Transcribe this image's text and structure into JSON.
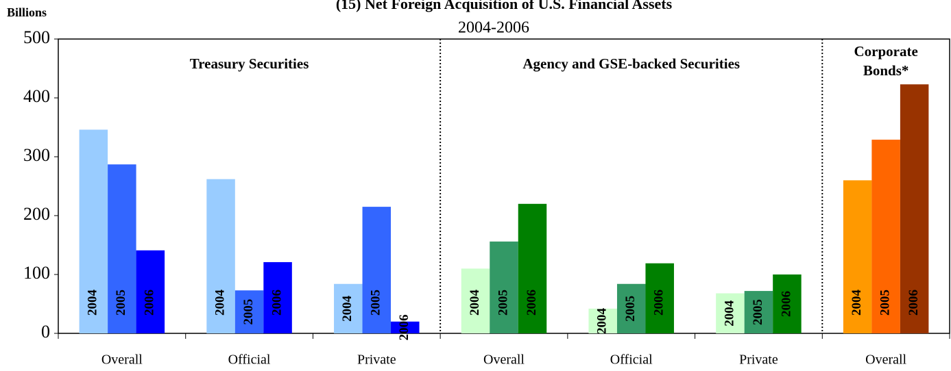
{
  "chart_data": {
    "type": "bar",
    "title": "(15) Net Foreign Acquisition of U.S. Financial Assets",
    "subtitle": "2004-2006",
    "y_label": "Billions",
    "categories": [
      "Overall",
      "Official",
      "Private",
      "Overall",
      "Official",
      "Private",
      "Overall"
    ],
    "sections": [
      {
        "label": [
          "Treasury Securities"
        ],
        "categories": 3
      },
      {
        "label": [
          "Agency and GSE-backed Securities"
        ],
        "categories": 3
      },
      {
        "label": [
          "Corporate",
          "Bonds*"
        ],
        "categories": 1
      }
    ],
    "series": [
      {
        "name": "2004",
        "values": [
          346,
          262,
          84,
          110,
          42,
          68,
          260
        ],
        "colors": [
          "#99ccff",
          "#99ccff",
          "#99ccff",
          "#ccffcc",
          "#ccffcc",
          "#ccffcc",
          "#ff9900"
        ]
      },
      {
        "name": "2005",
        "values": [
          287,
          73,
          215,
          156,
          84,
          72,
          329
        ],
        "colors": [
          "#3366ff",
          "#3366ff",
          "#3366ff",
          "#339966",
          "#339966",
          "#339966",
          "#ff6600"
        ]
      },
      {
        "name": "2006",
        "values": [
          141,
          121,
          20,
          220,
          119,
          100,
          423
        ],
        "colors": [
          "#0000ff",
          "#0000ff",
          "#0000ff",
          "#008000",
          "#008000",
          "#008000",
          "#993300"
        ]
      }
    ],
    "ylim": [
      0,
      500
    ],
    "yticks": [
      0,
      100,
      200,
      300,
      400,
      500
    ]
  }
}
